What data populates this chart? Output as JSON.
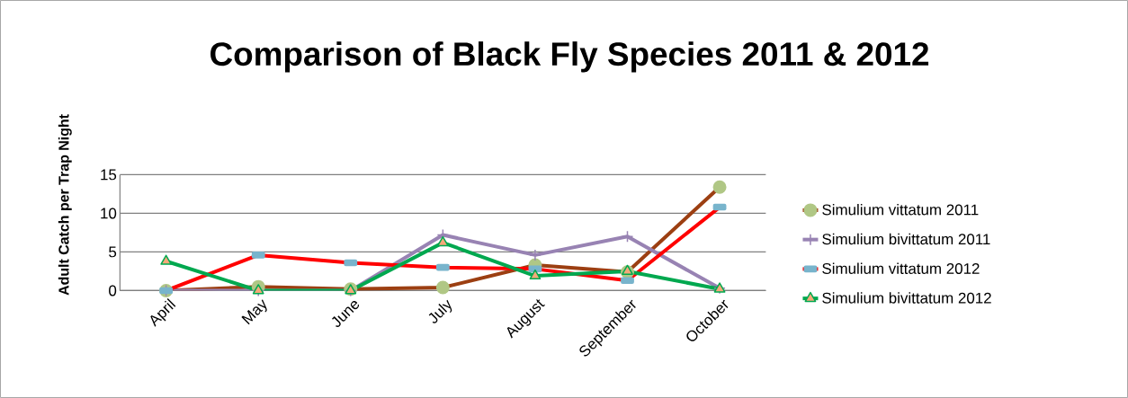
{
  "chart_data": {
    "type": "line",
    "title": "Comparison of Black Fly Species 2011 & 2012",
    "ylabel": "Adult Catch per Trap Night",
    "categories": [
      "April",
      "May",
      "June",
      "July",
      "August",
      "September",
      "October"
    ],
    "series": [
      {
        "name": "Simulium vittatum 2011",
        "color": "#9c3f12",
        "marker": "circle",
        "values": [
          0,
          0.5,
          0.2,
          0.4,
          3.3,
          2.4,
          13.4
        ]
      },
      {
        "name": "Simulium bivittatum 2011",
        "color": "#9883b3",
        "marker": "cross",
        "values": [
          0,
          0,
          0,
          7.2,
          4.6,
          7.0,
          0.3
        ]
      },
      {
        "name": "Simulium vittatum 2012",
        "color": "#ff0000",
        "marker": "square",
        "values": [
          0,
          4.6,
          3.6,
          3.0,
          2.8,
          1.3,
          10.8
        ]
      },
      {
        "name": "Simulium bivittatum 2012",
        "color": "#00a84f",
        "marker": "triangle",
        "values": [
          3.8,
          0,
          0,
          6.2,
          1.9,
          2.5,
          0.2
        ]
      }
    ],
    "ylim": [
      0,
      15
    ],
    "yticks": [
      0,
      5,
      10,
      15
    ],
    "grid": "y",
    "legend": "right"
  }
}
